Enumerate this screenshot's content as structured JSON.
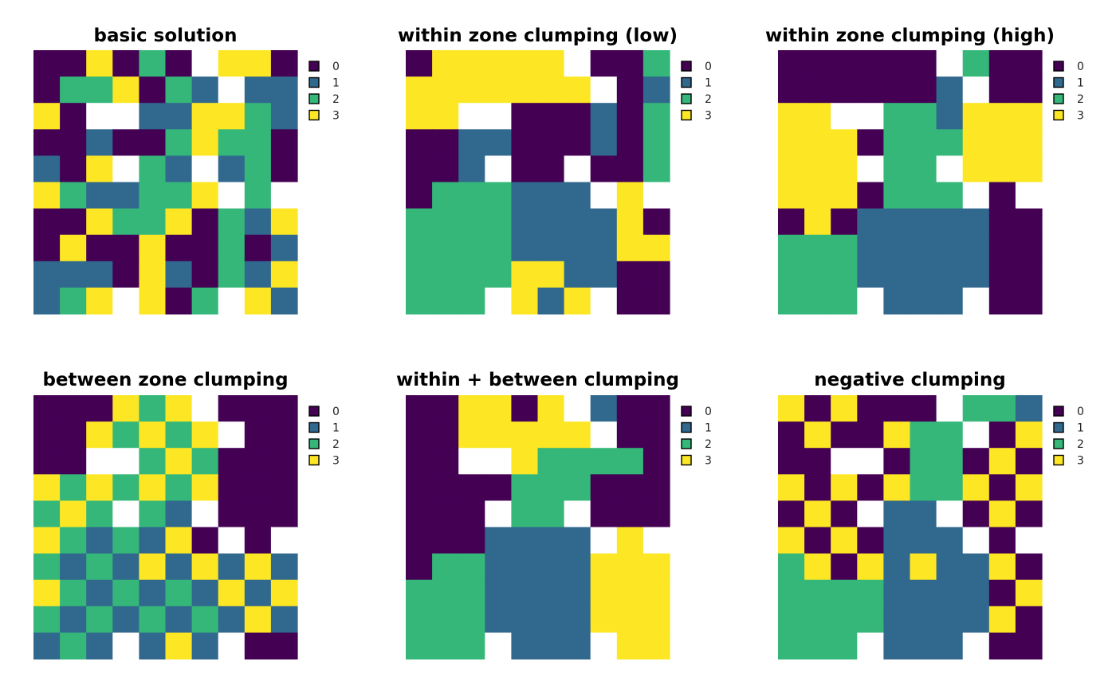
{
  "colors": {
    "0": "#440154",
    "1": "#31688E",
    "2": "#35B779",
    "3": "#FDE725",
    "na": "#FFFFFF"
  },
  "legend": [
    {
      "label": "0"
    },
    {
      "label": "1"
    },
    {
      "label": "2"
    },
    {
      "label": "3"
    }
  ],
  "chart_data": [
    {
      "type": "heatmap",
      "title": "basic solution",
      "grid": [
        [
          0,
          0,
          3,
          0,
          2,
          0,
          null,
          3,
          3,
          0
        ],
        [
          0,
          2,
          2,
          3,
          0,
          2,
          1,
          null,
          1,
          1
        ],
        [
          3,
          0,
          null,
          null,
          1,
          1,
          3,
          3,
          2,
          1
        ],
        [
          0,
          0,
          1,
          0,
          0,
          2,
          3,
          2,
          2,
          0
        ],
        [
          1,
          0,
          3,
          null,
          2,
          1,
          null,
          1,
          2,
          0
        ],
        [
          3,
          2,
          1,
          1,
          2,
          2,
          3,
          null,
          2,
          null
        ],
        [
          0,
          0,
          3,
          2,
          2,
          3,
          0,
          2,
          1,
          3
        ],
        [
          0,
          3,
          0,
          0,
          3,
          0,
          0,
          2,
          0,
          1
        ],
        [
          1,
          1,
          1,
          0,
          3,
          1,
          0,
          2,
          1,
          3
        ],
        [
          1,
          2,
          3,
          null,
          3,
          0,
          2,
          null,
          3,
          1
        ]
      ]
    },
    {
      "type": "heatmap",
      "title": "within zone clumping (low)",
      "grid": [
        [
          0,
          3,
          3,
          3,
          3,
          3,
          null,
          0,
          0,
          2
        ],
        [
          3,
          3,
          3,
          3,
          3,
          3,
          3,
          null,
          0,
          1
        ],
        [
          3,
          3,
          null,
          null,
          0,
          0,
          0,
          1,
          0,
          2
        ],
        [
          0,
          0,
          1,
          1,
          0,
          0,
          0,
          1,
          0,
          2
        ],
        [
          0,
          0,
          1,
          null,
          0,
          0,
          null,
          0,
          0,
          2
        ],
        [
          0,
          2,
          2,
          2,
          1,
          1,
          1,
          null,
          3,
          null
        ],
        [
          2,
          2,
          2,
          2,
          1,
          1,
          1,
          1,
          3,
          0
        ],
        [
          2,
          2,
          2,
          2,
          1,
          1,
          1,
          1,
          3,
          3
        ],
        [
          2,
          2,
          2,
          2,
          3,
          3,
          1,
          1,
          0,
          0
        ],
        [
          2,
          2,
          2,
          null,
          3,
          1,
          3,
          null,
          0,
          0
        ]
      ]
    },
    {
      "type": "heatmap",
      "title": "within zone clumping (high)",
      "grid": [
        [
          0,
          0,
          0,
          0,
          0,
          0,
          null,
          2,
          0,
          0
        ],
        [
          0,
          0,
          0,
          0,
          0,
          0,
          1,
          null,
          0,
          0
        ],
        [
          3,
          3,
          null,
          null,
          2,
          2,
          1,
          3,
          3,
          3
        ],
        [
          3,
          3,
          3,
          0,
          2,
          2,
          2,
          3,
          3,
          3
        ],
        [
          3,
          3,
          3,
          null,
          2,
          2,
          null,
          3,
          3,
          3
        ],
        [
          3,
          3,
          3,
          0,
          2,
          2,
          2,
          null,
          0,
          null
        ],
        [
          0,
          3,
          0,
          1,
          1,
          1,
          1,
          1,
          0,
          0
        ],
        [
          2,
          2,
          2,
          1,
          1,
          1,
          1,
          1,
          0,
          0
        ],
        [
          2,
          2,
          2,
          1,
          1,
          1,
          1,
          1,
          0,
          0
        ],
        [
          2,
          2,
          2,
          null,
          1,
          1,
          1,
          null,
          0,
          0
        ]
      ]
    },
    {
      "type": "heatmap",
      "title": "between zone clumping",
      "grid": [
        [
          0,
          0,
          0,
          3,
          2,
          3,
          null,
          0,
          0,
          0
        ],
        [
          0,
          0,
          3,
          2,
          3,
          2,
          3,
          null,
          0,
          0
        ],
        [
          0,
          0,
          null,
          null,
          2,
          3,
          2,
          0,
          0,
          0
        ],
        [
          3,
          2,
          3,
          2,
          3,
          2,
          3,
          0,
          0,
          0
        ],
        [
          2,
          3,
          2,
          null,
          2,
          1,
          null,
          0,
          0,
          0
        ],
        [
          3,
          2,
          1,
          2,
          1,
          3,
          0,
          null,
          0,
          null
        ],
        [
          2,
          1,
          2,
          1,
          3,
          1,
          3,
          1,
          3,
          1
        ],
        [
          3,
          2,
          1,
          2,
          1,
          2,
          1,
          3,
          1,
          3
        ],
        [
          2,
          1,
          2,
          1,
          2,
          1,
          2,
          1,
          3,
          1
        ],
        [
          1,
          2,
          1,
          null,
          1,
          3,
          1,
          null,
          0,
          0
        ]
      ]
    },
    {
      "type": "heatmap",
      "title": "within + between clumping",
      "grid": [
        [
          0,
          0,
          3,
          3,
          0,
          3,
          null,
          1,
          0,
          0
        ],
        [
          0,
          0,
          3,
          3,
          3,
          3,
          3,
          null,
          0,
          0
        ],
        [
          0,
          0,
          null,
          null,
          3,
          2,
          2,
          2,
          2,
          0
        ],
        [
          0,
          0,
          0,
          0,
          2,
          2,
          2,
          0,
          0,
          0
        ],
        [
          0,
          0,
          0,
          null,
          2,
          2,
          null,
          0,
          0,
          0
        ],
        [
          0,
          0,
          0,
          1,
          1,
          1,
          1,
          null,
          3,
          null
        ],
        [
          0,
          2,
          2,
          1,
          1,
          1,
          1,
          3,
          3,
          3
        ],
        [
          2,
          2,
          2,
          1,
          1,
          1,
          1,
          3,
          3,
          3
        ],
        [
          2,
          2,
          2,
          1,
          1,
          1,
          1,
          3,
          3,
          3
        ],
        [
          2,
          2,
          2,
          null,
          1,
          1,
          1,
          null,
          3,
          3
        ]
      ]
    },
    {
      "type": "heatmap",
      "title": "negative clumping",
      "grid": [
        [
          3,
          0,
          3,
          0,
          0,
          0,
          null,
          2,
          2,
          1
        ],
        [
          0,
          3,
          0,
          0,
          3,
          2,
          2,
          null,
          0,
          3
        ],
        [
          0,
          0,
          null,
          null,
          0,
          2,
          2,
          0,
          3,
          0
        ],
        [
          3,
          0,
          3,
          0,
          3,
          2,
          2,
          3,
          0,
          3
        ],
        [
          0,
          3,
          0,
          null,
          1,
          1,
          null,
          0,
          3,
          0
        ],
        [
          3,
          0,
          3,
          0,
          1,
          1,
          1,
          null,
          0,
          null
        ],
        [
          2,
          3,
          0,
          3,
          1,
          3,
          1,
          1,
          3,
          0
        ],
        [
          2,
          2,
          2,
          2,
          1,
          1,
          1,
          1,
          0,
          3
        ],
        [
          2,
          2,
          2,
          2,
          1,
          1,
          1,
          1,
          3,
          0
        ],
        [
          2,
          2,
          2,
          null,
          1,
          1,
          1,
          null,
          0,
          0
        ]
      ]
    }
  ]
}
